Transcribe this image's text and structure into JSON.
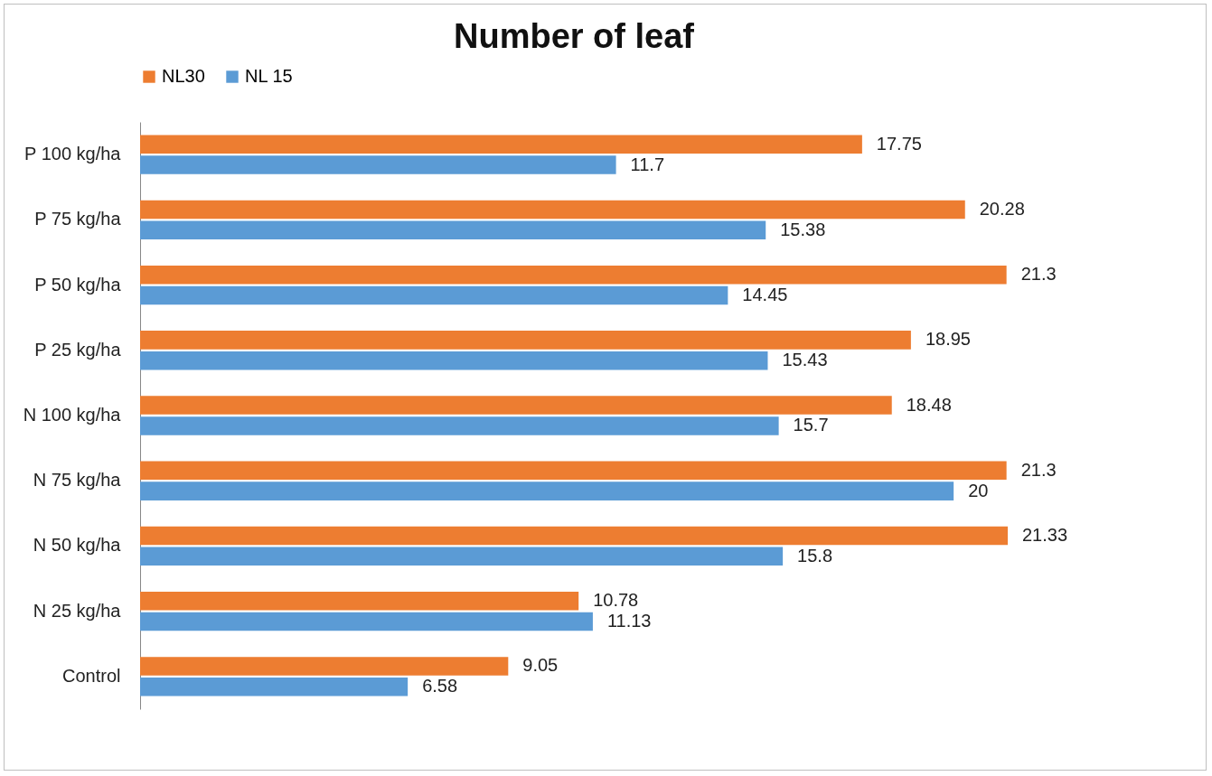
{
  "chart_data": {
    "type": "bar",
    "orientation": "horizontal",
    "title": "Number of leaf",
    "categories": [
      "P 100 kg/ha",
      "P 75 kg/ha",
      "P 50 kg/ha",
      "P 25 kg/ha",
      "N 100 kg/ha",
      "N 75 kg/ha",
      "N 50 kg/ha",
      "N 25 kg/ha",
      "Control"
    ],
    "series": [
      {
        "name": "NL30",
        "color": "#ed7d31",
        "values": [
          17.75,
          20.28,
          21.3,
          18.95,
          18.48,
          21.3,
          21.33,
          10.78,
          9.05
        ]
      },
      {
        "name": "NL 15",
        "color": "#5b9bd5",
        "values": [
          11.7,
          15.38,
          14.45,
          15.43,
          15.7,
          20,
          15.8,
          11.13,
          6.58
        ]
      }
    ],
    "data_labels": true,
    "legend": "top",
    "tick_labels": "y"
  }
}
